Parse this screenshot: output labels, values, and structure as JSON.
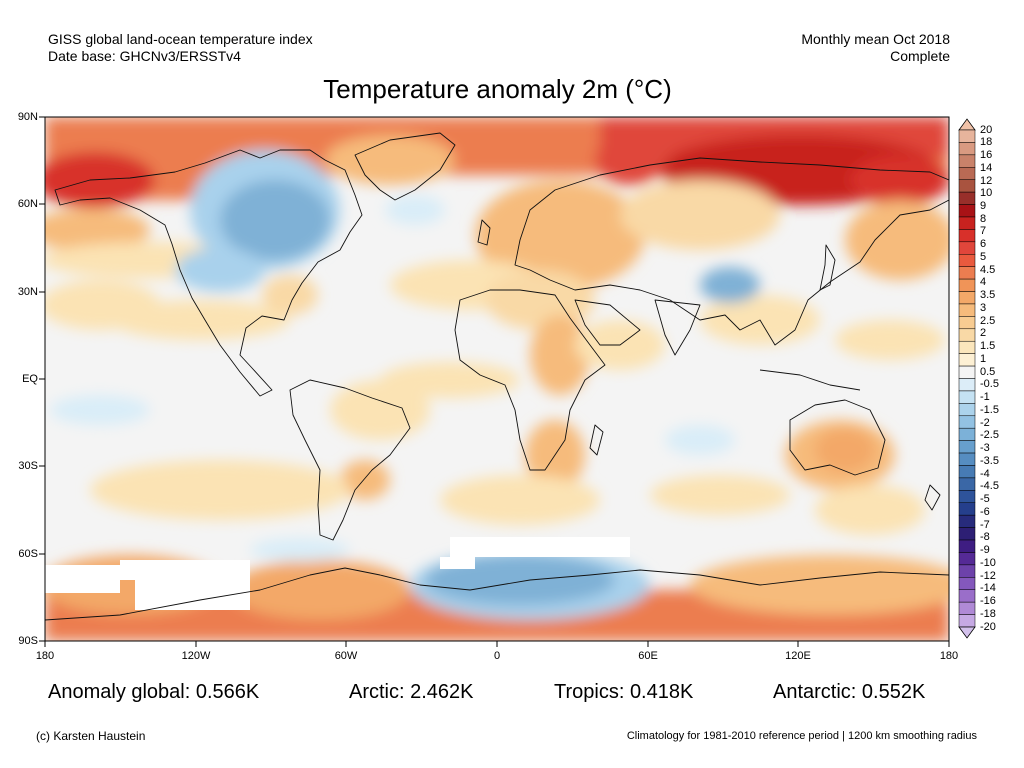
{
  "header": {
    "left_line1": "GISS global land-ocean temperature index",
    "left_line2": "Date base: GHCNv3/ERSSTv4",
    "right_line1": "Monthly mean Oct 2018",
    "right_line2": "Complete"
  },
  "title": "Temperature anomaly 2m (°C)",
  "map": {
    "projection": "equirectangular",
    "lon_range": [
      -180,
      180
    ],
    "lat_range": [
      -90,
      90
    ],
    "lat_labels": [
      "90N",
      "60N",
      "30N",
      "EQ",
      "30S",
      "60S",
      "90S"
    ],
    "lon_labels": [
      "180",
      "120W",
      "60W",
      "0",
      "60E",
      "120E",
      "180"
    ],
    "colors": {
      "no_data": "#ffffff",
      "near_zero": "#f4f4f4",
      "warm_light": "#fbe3b4",
      "warm_mid": "#f6bb7c",
      "warm_strong": "#ec7d50",
      "hot": "#e0463b",
      "very_hot": "#c8221f",
      "cool_light": "#d9edf8",
      "cool_mid": "#a9d1ec",
      "cool_strong": "#7fb1d6",
      "cold": "#5a93c5"
    }
  },
  "colorbar": {
    "labels": [
      "20",
      "18",
      "16",
      "14",
      "12",
      "10",
      "9",
      "8",
      "7",
      "6",
      "5",
      "4.5",
      "4",
      "3.5",
      "3",
      "2.5",
      "2",
      "1.5",
      "1",
      "0.5",
      "-0.5",
      "-1",
      "-1.5",
      "-2",
      "-2.5",
      "-3",
      "-3.5",
      "-4",
      "-4.5",
      "-5",
      "-6",
      "-7",
      "-8",
      "-9",
      "-10",
      "-12",
      "-14",
      "-16",
      "-18",
      "-20"
    ],
    "colors": [
      "#e7b49c",
      "#d99a81",
      "#c9826a",
      "#b96a54",
      "#a9533f",
      "#982f2a",
      "#a81216",
      "#c8221f",
      "#d8302a",
      "#e0463b",
      "#e95a3e",
      "#ec7d50",
      "#f09458",
      "#f3a868",
      "#f6bb7c",
      "#f8cc92",
      "#f9d9a6",
      "#fbe6bc",
      "#fdf0d4",
      "#f4f4f4",
      "#dcedf8",
      "#c5e2f3",
      "#acd3ec",
      "#93c2e3",
      "#7cb1d8",
      "#679fcd",
      "#568dc1",
      "#477bb4",
      "#3a67a6",
      "#2e539a",
      "#253f8c",
      "#272b7c",
      "#2d1f74",
      "#3e1d82",
      "#552a96",
      "#6d42aa",
      "#8458bc",
      "#9a6ec9",
      "#b08ad6",
      "#c6a9e4"
    ]
  },
  "stats": {
    "global": "Anomaly global: 0.566K",
    "arctic": "Arctic: 2.462K",
    "tropics": "Tropics: 0.418K",
    "antarctic": "Antarctic: 0.552K"
  },
  "footer": {
    "credit": "(c) Karsten Haustein",
    "climatology": "Climatology for 1981-2010 reference period | 1200 km smoothing radius"
  }
}
